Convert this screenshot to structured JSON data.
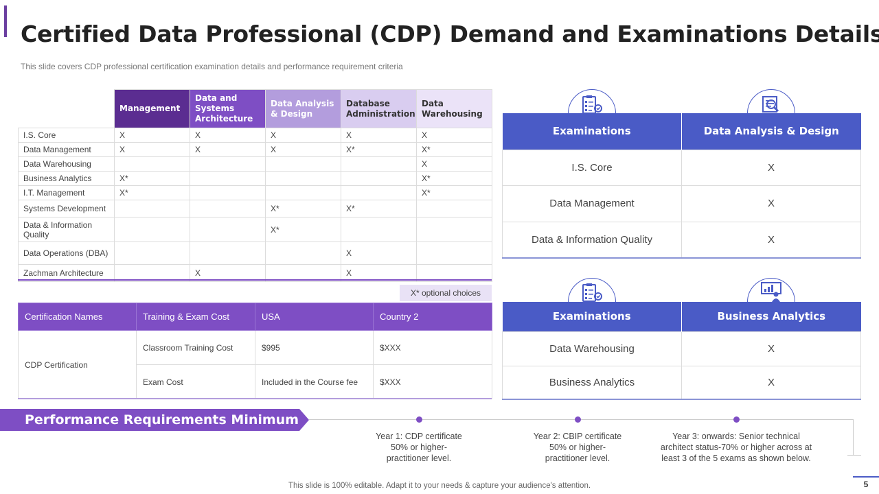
{
  "title": "Certified Data Professional (CDP) Demand and Examinations Details",
  "subtitle": "This slide covers CDP professional  certification examination details and performance  requirement  criteria",
  "matrix": {
    "headers": [
      "Management",
      "Data and Systems Architecture",
      "Data Analysis & Design",
      "Database Administration",
      "Data Warehousing"
    ],
    "rows": [
      {
        "label": "I.S. Core",
        "cells": [
          "X",
          "X",
          "X",
          "X",
          "X"
        ]
      },
      {
        "label": "Data Management",
        "cells": [
          "X",
          "X",
          "X",
          "X*",
          "X*"
        ]
      },
      {
        "label": "Data Warehousing",
        "cells": [
          "",
          "",
          "",
          "",
          "X"
        ]
      },
      {
        "label": "Business Analytics",
        "cells": [
          "X*",
          "",
          "",
          "",
          "X*"
        ]
      },
      {
        "label": "I.T. Management",
        "cells": [
          "X*",
          "",
          "",
          "",
          "X*"
        ]
      },
      {
        "label": "Systems Development",
        "cells": [
          "",
          "",
          "X*",
          "X*",
          ""
        ]
      },
      {
        "label": "Data & Information Quality",
        "cells": [
          "",
          "",
          "X*",
          "",
          ""
        ]
      },
      {
        "label": "Data Operations (DBA)",
        "cells": [
          "",
          "",
          "",
          "X",
          ""
        ]
      },
      {
        "label": "Zachman Architecture",
        "cells": [
          "",
          "X",
          "",
          "X",
          ""
        ]
      }
    ]
  },
  "note": "X* optional choices",
  "cost_table": {
    "headers": [
      "Certification Names",
      "Training & Exam Cost",
      "USA",
      "Country 2"
    ],
    "certification": "CDP Certification",
    "rows": [
      {
        "item": "Classroom Training Cost",
        "usa": "$995",
        "country2": "$XXX"
      },
      {
        "item": "Exam Cost",
        "usa": "Included in the Course fee",
        "country2": "$XXX"
      }
    ]
  },
  "exam_tables": [
    {
      "icon": "clipboard-checklist-icon",
      "headers": [
        "Examinations",
        "Data Analysis & Design"
      ],
      "rows": [
        {
          "exam": "I.S. Core",
          "value": "X"
        },
        {
          "exam": "Data Management",
          "value": "X"
        },
        {
          "exam": "Data & Information Quality",
          "value": "X"
        }
      ]
    },
    {
      "icon": "presenter-board-icon",
      "headers": [
        "Examinations",
        "Business Analytics"
      ],
      "rows": [
        {
          "exam": "Data Warehousing",
          "value": "X"
        },
        {
          "exam": "Business Analytics",
          "value": "X"
        }
      ]
    }
  ],
  "performance": {
    "title": "Performance Requirements Minimum",
    "steps": [
      "Year 1: CDP certificate\n50% or higher-\npractitioner level.",
      "Year 2: CBIP certificate\n50% or higher-\npractitioner level.",
      "Year 3:  onwards: Senior technical\narchitect status-70% or higher across at\nleast 3 of the 5 exams as shown below."
    ]
  },
  "footer": "This slide is 100% editable. Adapt it to your needs & capture your audience's attention.",
  "page_number": "5",
  "colors": {
    "purple_dark": "#5b2d91",
    "purple": "#7e4ec4",
    "blue": "#4a5bc6"
  }
}
